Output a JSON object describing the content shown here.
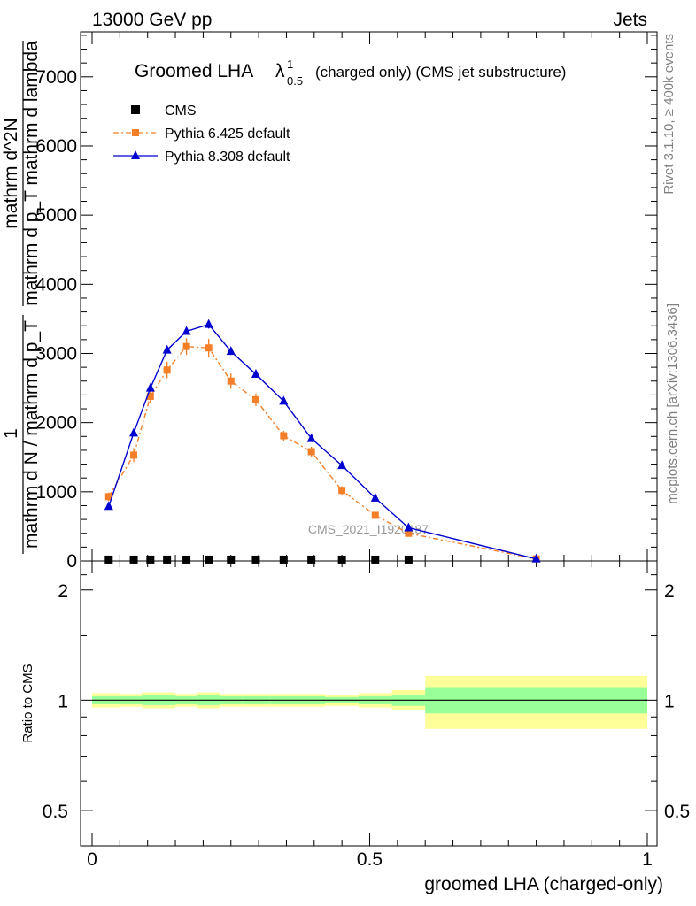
{
  "header": {
    "left": "13000 GeV pp",
    "right": "Jets"
  },
  "side_labels": {
    "rivet": "Rivet 3.1.10, ≥ 400k events",
    "mcplots": "mcplots.cern.ch [arXiv:1306.3436]"
  },
  "watermark": "CMS_2021_I1920187",
  "chart_data": [
    {
      "type": "line",
      "title_main": "Groomed LHA",
      "title_symbol": "λ",
      "title_sup": "1",
      "title_sub": "0.5",
      "title_suffix": "(charged only) (CMS jet substructure)",
      "ylabel": {
        "frac1_num": "1",
        "frac1_den": "mathrm d N / mathrm d p_T",
        "frac2_num": "mathrm d^2N",
        "frac2_den": "mathrm d p_T mathrm d lambda"
      },
      "xlim": [
        0,
        1
      ],
      "ylim": [
        0,
        7650
      ],
      "yticks": [
        0,
        1000,
        2000,
        3000,
        4000,
        5000,
        6000,
        7000
      ],
      "ytick_labels": [
        "0",
        "1000",
        "2000",
        "3000",
        "4000",
        "5000",
        "6000",
        "7000"
      ],
      "legend_position": "top-left",
      "series": [
        {
          "name": "CMS",
          "color": "#000000",
          "marker": "square",
          "x": [
            0.03,
            0.075,
            0.105,
            0.135,
            0.17,
            0.21,
            0.25,
            0.295,
            0.345,
            0.395,
            0.45,
            0.51,
            0.57
          ],
          "y": [
            20,
            20,
            20,
            20,
            20,
            20,
            20,
            20,
            20,
            20,
            20,
            20,
            20
          ]
        },
        {
          "name": "Pythia 6.425 default",
          "color": "#f57f28",
          "marker": "square",
          "x": [
            0.03,
            0.075,
            0.105,
            0.135,
            0.17,
            0.21,
            0.25,
            0.295,
            0.345,
            0.395,
            0.45,
            0.51,
            0.57,
            0.8
          ],
          "y": [
            930,
            1530,
            2380,
            2760,
            3100,
            3080,
            2600,
            2330,
            1810,
            1580,
            1020,
            660,
            400,
            30
          ],
          "err": [
            60,
            100,
            100,
            120,
            120,
            130,
            110,
            90,
            70,
            70,
            60,
            40,
            30,
            10
          ]
        },
        {
          "name": "Pythia 8.308 default",
          "color": "#0000d0",
          "marker": "triangle",
          "x": [
            0.03,
            0.075,
            0.105,
            0.135,
            0.17,
            0.21,
            0.25,
            0.295,
            0.345,
            0.395,
            0.45,
            0.51,
            0.57,
            0.8
          ],
          "y": [
            790,
            1850,
            2500,
            3050,
            3320,
            3420,
            3030,
            2700,
            2310,
            1770,
            1380,
            910,
            480,
            30
          ],
          "err": [
            30,
            40,
            50,
            50,
            50,
            60,
            50,
            40,
            40,
            40,
            30,
            30,
            20,
            10
          ]
        }
      ]
    },
    {
      "type": "area",
      "ylabel": "Ratio to CMS",
      "xlabel": "groomed LHA (charged-only)",
      "xlim": [
        0,
        1
      ],
      "ylim": [
        0.4,
        2.4
      ],
      "scale": "log",
      "yticks": [
        0.5,
        1,
        2
      ],
      "ytick_labels": [
        "0.5",
        "1",
        "2"
      ],
      "xticks": [
        0,
        0.5,
        1
      ],
      "xtick_labels": [
        "0",
        "0.5",
        "1"
      ],
      "bands": {
        "bin_edges": [
          0,
          0.05,
          0.09,
          0.12,
          0.15,
          0.19,
          0.23,
          0.27,
          0.32,
          0.37,
          0.42,
          0.48,
          0.54,
          0.6,
          1.0
        ],
        "stat_lo": [
          0.975,
          0.975,
          0.97,
          0.97,
          0.975,
          0.97,
          0.975,
          0.975,
          0.975,
          0.975,
          0.98,
          0.975,
          0.965,
          0.92
        ],
        "stat_hi": [
          1.025,
          1.025,
          1.03,
          1.03,
          1.025,
          1.03,
          1.025,
          1.025,
          1.025,
          1.025,
          1.02,
          1.025,
          1.035,
          1.08
        ],
        "total_lo": [
          0.955,
          0.96,
          0.95,
          0.95,
          0.96,
          0.95,
          0.96,
          0.96,
          0.96,
          0.96,
          0.965,
          0.955,
          0.94,
          0.835
        ],
        "total_hi": [
          1.045,
          1.04,
          1.05,
          1.05,
          1.04,
          1.05,
          1.04,
          1.04,
          1.04,
          1.04,
          1.035,
          1.045,
          1.065,
          1.165
        ],
        "stat_color": "#99ff99",
        "total_color": "#ffff99"
      }
    }
  ]
}
